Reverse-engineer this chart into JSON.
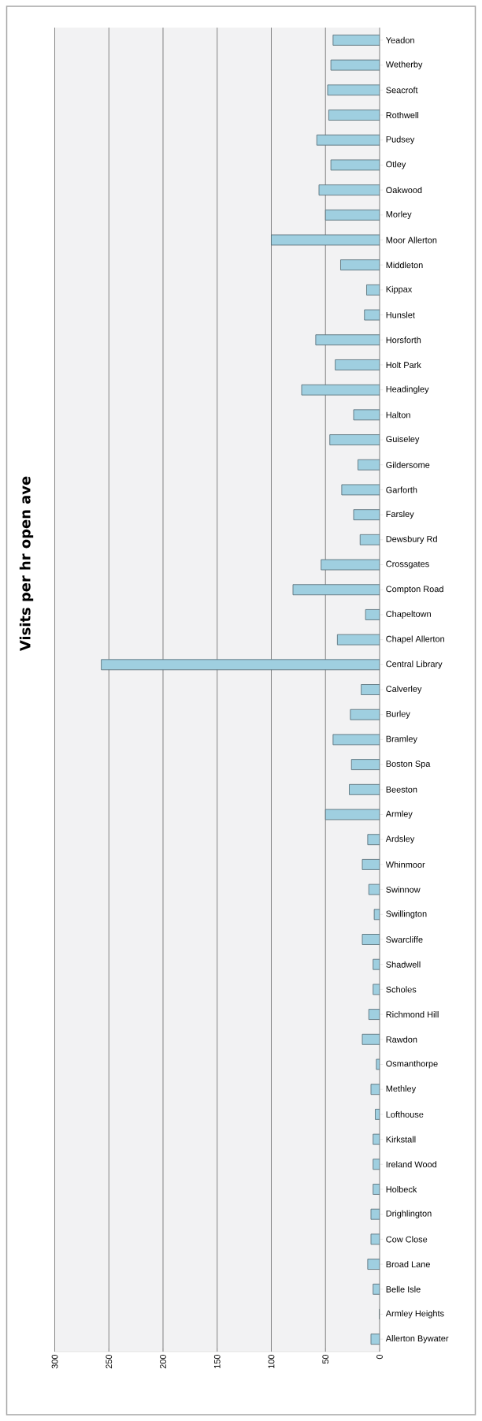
{
  "chart_data": {
    "type": "bar",
    "orientation": "horizontal",
    "title": "Visits per hr open ave",
    "categories": [
      "Yeadon",
      "Wetherby",
      "Seacroft",
      "Rothwell",
      "Pudsey",
      "Otley",
      "Oakwood",
      "Morley",
      "Moor Allerton",
      "Middleton",
      "Kippax",
      "Hunslet",
      "Horsforth",
      "Holt Park",
      "Headingley",
      "Halton",
      "Guiseley",
      "Gildersome",
      "Garforth",
      "Farsley",
      "Dewsbury Rd",
      "Crossgates",
      "Compton Road",
      "Chapeltown",
      "Chapel Allerton",
      "Central Library",
      "Calverley",
      "Burley",
      "Bramley",
      "Boston Spa",
      "Beeston",
      "Armley",
      "Ardsley",
      "Whinmoor",
      "Swinnow",
      "Swillington",
      "Swarcliffe",
      "Shadwell",
      "Scholes",
      "Richmond Hill",
      "Rawdon",
      "Osmanthorpe",
      "Methley",
      "Lofthouse",
      "Kirkstall",
      "Ireland Wood",
      "Holbeck",
      "Drighlington",
      "Cow Close",
      "Broad Lane",
      "Belle Isle",
      "Armley Heights",
      "Allerton Bywater"
    ],
    "values": [
      43,
      45,
      48,
      47,
      58,
      45,
      56,
      50,
      100,
      36,
      12,
      14,
      59,
      41,
      72,
      24,
      46,
      20,
      35,
      24,
      18,
      54,
      80,
      13,
      39,
      257,
      17,
      27,
      43,
      26,
      28,
      50,
      11,
      16,
      10,
      5,
      16,
      6,
      6,
      10,
      16,
      3,
      8,
      4,
      6,
      6,
      6,
      8,
      8,
      11,
      6,
      0,
      8
    ],
    "color": "#9fcfe0",
    "xlim": [
      300,
      0
    ],
    "xticks": [
      0,
      50,
      100,
      150,
      200,
      250,
      300
    ],
    "grid": "x"
  }
}
